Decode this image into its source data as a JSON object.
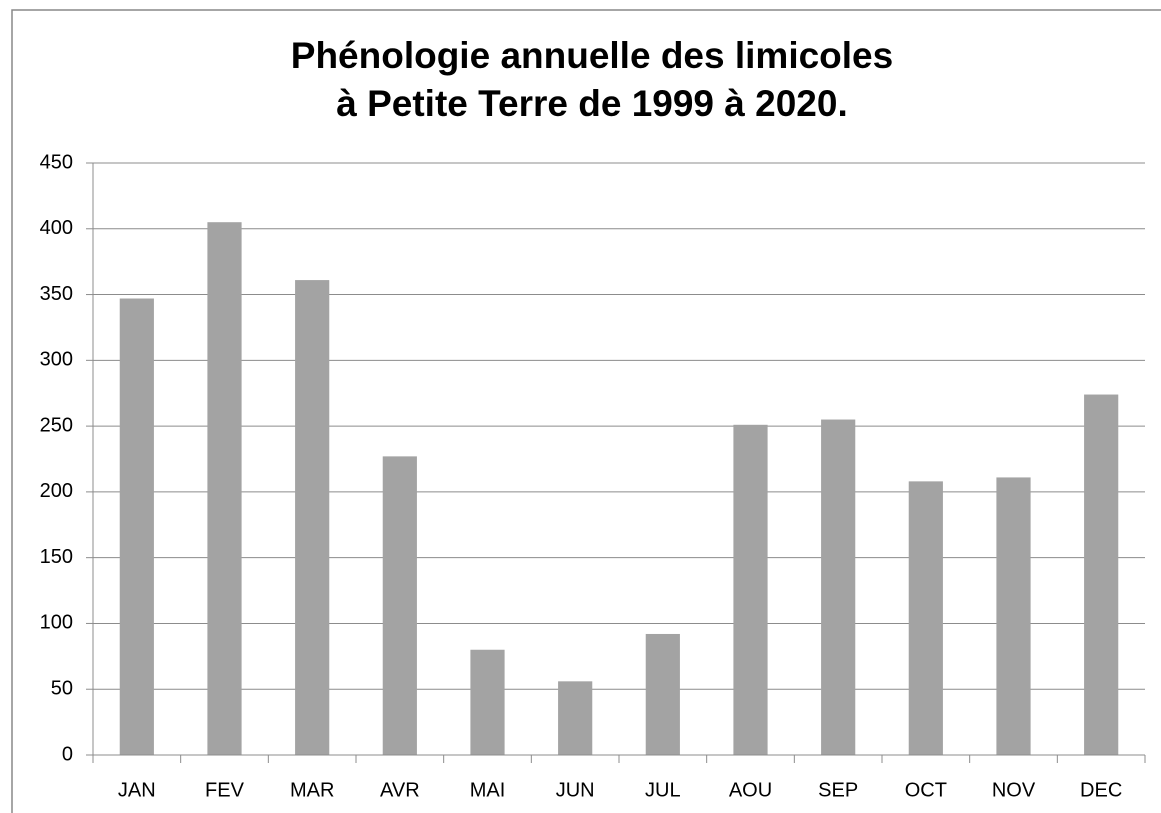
{
  "chart_data": {
    "type": "bar",
    "title": [
      "Phénologie annuelle des limicoles",
      "à Petite Terre de 1999 à 2020."
    ],
    "categories": [
      "JAN",
      "FEV",
      "MAR",
      "AVR",
      "MAI",
      "JUN",
      "JUL",
      "AOU",
      "SEP",
      "OCT",
      "NOV",
      "DEC"
    ],
    "values": [
      347,
      405,
      361,
      227,
      80,
      56,
      92,
      251,
      255,
      208,
      211,
      274
    ],
    "color": "#a3a3a3",
    "ylim": [
      0,
      450
    ],
    "yticks": [
      0,
      50,
      100,
      150,
      200,
      250,
      300,
      350,
      400,
      450
    ],
    "grid": true
  }
}
